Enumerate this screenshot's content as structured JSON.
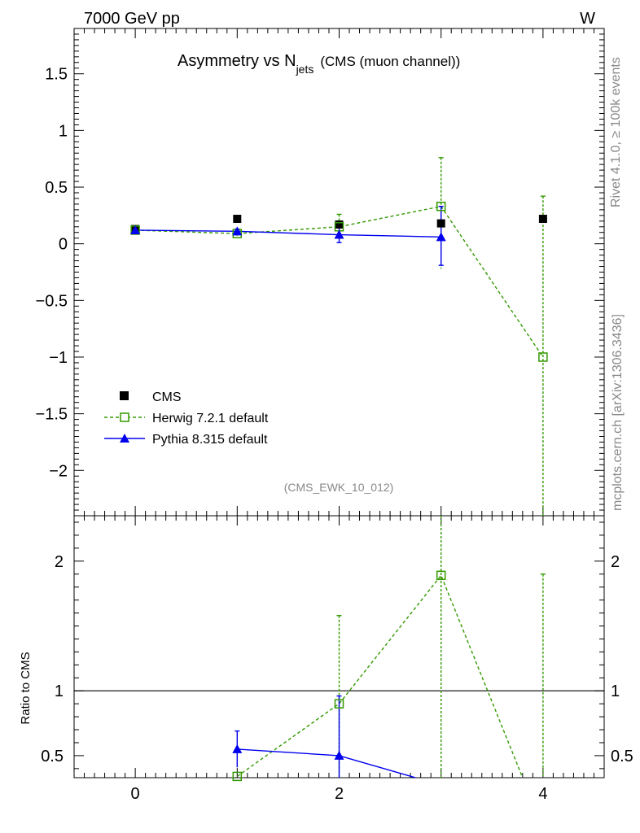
{
  "header": {
    "left": "7000 GeV pp",
    "right": "W"
  },
  "side_labels": {
    "top": "Rivet 4.1.0, ≥ 100k events",
    "bottom": "mcplots.cern.ch [arXiv:1306.3436]"
  },
  "colors": {
    "cms": "#000000",
    "herwig": "#339900",
    "pythia": "#0000ee",
    "side": "#888888"
  },
  "chart_data": [
    {
      "type": "line",
      "title_main": "Asymmetry vs N",
      "title_sub": "jets",
      "title_note": "(CMS (muon channel))",
      "watermark": "(CMS_EWK_10_012)",
      "xlim": [
        -0.6,
        4.6
      ],
      "ylim": [
        -2.4,
        1.9
      ],
      "x_ticks": [
        0,
        2,
        4
      ],
      "y_ticks": [
        1.5,
        1,
        0.5,
        0,
        -0.5,
        -1,
        -1.5,
        -2
      ],
      "y_tick_labels": [
        "1.5",
        "1",
        "0.5",
        "0",
        "−0.5",
        "−1",
        "−1.5",
        "−2"
      ],
      "legend_position": "bottom-left",
      "series": [
        {
          "name": "CMS",
          "style": "markers",
          "marker": "square-filled",
          "x": [
            0,
            1,
            2,
            3,
            4
          ],
          "y": [
            0.13,
            0.22,
            0.17,
            0.18,
            0.22
          ],
          "err": [
            0.02,
            0.02,
            0.04,
            0.03,
            0.03
          ]
        },
        {
          "name": "Herwig 7.2.1 default",
          "style": "dashed",
          "marker": "square-open",
          "x": [
            0,
            1,
            2,
            3,
            4
          ],
          "y": [
            0.12,
            0.09,
            0.15,
            0.33,
            -1.0
          ],
          "err_lo": [
            0.02,
            0.02,
            0.03,
            0.55,
            1.5
          ],
          "err_hi": [
            0.02,
            0.02,
            0.11,
            0.43,
            1.42
          ]
        },
        {
          "name": "Pythia 8.315 default",
          "style": "solid",
          "marker": "triangle-filled",
          "x": [
            0,
            1,
            2,
            3
          ],
          "y": [
            0.12,
            0.11,
            0.08,
            0.06
          ],
          "err_lo": [
            0.02,
            0.02,
            0.07,
            0.25
          ],
          "err_hi": [
            0.02,
            0.02,
            0.06,
            0.27
          ]
        }
      ]
    },
    {
      "type": "line",
      "ylabel": "Ratio to CMS",
      "xlim": [
        -0.6,
        4.6
      ],
      "ylim": [
        0.33,
        2.35
      ],
      "x_ticks": [
        0,
        2,
        4
      ],
      "x_tick_labels": [
        "0",
        "2",
        "4"
      ],
      "y_ticks": [
        2,
        1,
        0.5
      ],
      "y_tick_labels": [
        "2",
        "1",
        "0.5"
      ],
      "reference_line": 1,
      "series": [
        {
          "name": "Herwig 7.2.1 default",
          "style": "dashed",
          "marker": "square-open",
          "x": [
            1,
            2,
            3,
            3.8
          ],
          "y": [
            0.34,
            0.9,
            1.89,
            0.33
          ],
          "markers_x": [
            1,
            2,
            3
          ],
          "markers_y": [
            0.34,
            0.9,
            1.89
          ],
          "err_x": [
            2,
            3,
            4
          ],
          "err_lo": [
            0.57,
            1.56,
            1.6
          ],
          "err_hi": [
            0.68,
            0.46,
            0.0
          ]
        },
        {
          "name": "Pythia 8.315 default",
          "style": "solid",
          "marker": "triangle-filled",
          "x": [
            1,
            2,
            2.75
          ],
          "y": [
            0.55,
            0.5,
            0.33
          ],
          "markers_x": [
            1,
            2
          ],
          "markers_y": [
            0.55,
            0.5
          ],
          "err_x": [
            1,
            2
          ],
          "err_lo": [
            0.14,
            0.46
          ],
          "err_hi": [
            0.14,
            0.46
          ]
        }
      ]
    }
  ]
}
